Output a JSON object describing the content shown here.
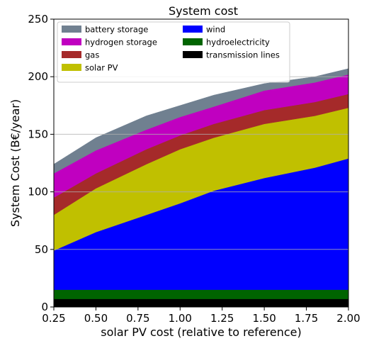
{
  "chart_data": {
    "type": "area",
    "title": "System cost",
    "xlabel": "solar PV cost (relative to reference)",
    "ylabel": "System Cost (B€/year)",
    "xlim": [
      0.25,
      2.0
    ],
    "ylim": [
      0,
      250
    ],
    "x": [
      0.25,
      0.5,
      0.8,
      1.0,
      1.2,
      1.5,
      1.8,
      2.0
    ],
    "xticks": [
      "0.25",
      "0.50",
      "0.75",
      "1.00",
      "1.25",
      "1.50",
      "1.75",
      "2.00"
    ],
    "yticks": [
      "0",
      "50",
      "100",
      "150",
      "200",
      "250"
    ],
    "grid": "horizontal",
    "legend_position": "top-left",
    "series": [
      {
        "name": "transmission lines",
        "color": "#000000",
        "values": [
          7,
          7,
          7,
          7,
          7,
          7,
          7,
          7
        ]
      },
      {
        "name": "hydroelectricity",
        "color": "#006400",
        "values": [
          8,
          8,
          8,
          8,
          8,
          8,
          8,
          8
        ]
      },
      {
        "name": "wind",
        "color": "#0000ff",
        "values": [
          34,
          50,
          65,
          75,
          86,
          97,
          106,
          114
        ]
      },
      {
        "name": "solar PV",
        "color": "#c0c000",
        "values": [
          31,
          38,
          44,
          47,
          46,
          47,
          45,
          44
        ]
      },
      {
        "name": "gas",
        "color": "#a52a2a",
        "values": [
          15,
          13,
          13,
          12,
          12,
          12,
          12,
          12
        ]
      },
      {
        "name": "hydrogen storage",
        "color": "#c000c0",
        "values": [
          21,
          20,
          17,
          16,
          15,
          17,
          17,
          17
        ]
      },
      {
        "name": "battery storage",
        "color": "#708090",
        "values": [
          8,
          11,
          12,
          10,
          10,
          6,
          5,
          5
        ]
      }
    ],
    "legend_order": [
      "battery storage",
      "hydrogen storage",
      "gas",
      "solar PV",
      "wind",
      "hydroelectricity",
      "transmission lines"
    ]
  }
}
